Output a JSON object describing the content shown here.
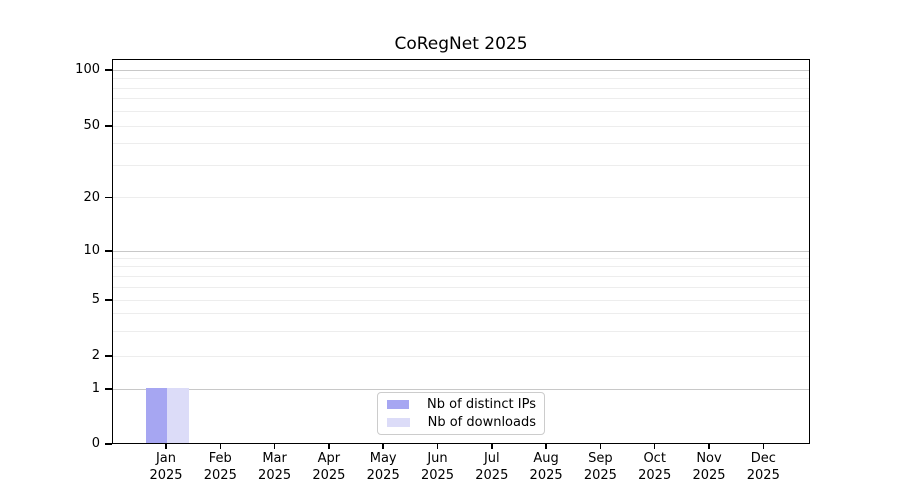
{
  "chart_data": {
    "type": "bar",
    "title": "CoRegNet 2025",
    "categories": [
      "Jan",
      "Feb",
      "Mar",
      "Apr",
      "May",
      "Jun",
      "Jul",
      "Aug",
      "Sep",
      "Oct",
      "Nov",
      "Dec"
    ],
    "category_year": "2025",
    "series": [
      {
        "name": "Nb of distinct IPs",
        "color": "#a6a6f2",
        "values": [
          1,
          0,
          0,
          0,
          0,
          0,
          0,
          0,
          0,
          0,
          0,
          0
        ]
      },
      {
        "name": "Nb of downloads",
        "color": "#dcdcf8",
        "values": [
          1,
          0,
          0,
          0,
          0,
          0,
          0,
          0,
          0,
          0,
          0,
          0
        ]
      }
    ],
    "yticks": [
      0,
      1,
      2,
      5,
      10,
      20,
      50,
      100
    ],
    "ylim": [
      0,
      100
    ],
    "yscale": "log-like (1-2-5 steps)",
    "grid": true,
    "legend_position": "bottom-center-inside",
    "colors": {
      "major_grid": "#c8c8c8",
      "minor_grid": "#ededed",
      "spine": "#000000",
      "background": "#ffffff"
    }
  }
}
